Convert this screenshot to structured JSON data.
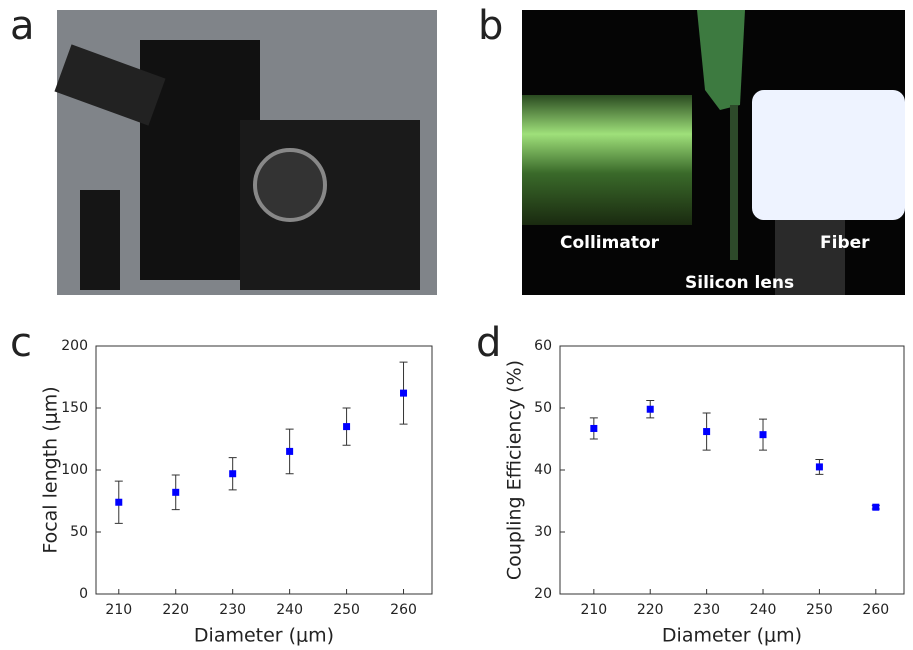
{
  "panel_labels": [
    "a",
    "b",
    "c",
    "d"
  ],
  "photo_labels": [
    "Collimator",
    "Silicon lens",
    "Fiber"
  ],
  "chart_data": [
    {
      "type": "scatter",
      "x_label": "Diameter (μm)",
      "y_label": "Focal length (μm)",
      "x": [
        210,
        220,
        230,
        240,
        250,
        260
      ],
      "values": [
        74,
        82,
        97,
        115,
        135,
        162
      ],
      "errors": [
        17,
        14,
        13,
        18,
        15,
        25
      ],
      "color": "#0000ff",
      "xlim": [
        206,
        265
      ],
      "xticks": [
        210,
        220,
        230,
        240,
        250,
        260
      ],
      "ylim": [
        0,
        200
      ],
      "yticks": [
        0,
        50,
        100,
        150,
        200
      ]
    },
    {
      "type": "scatter",
      "x_label": "Diameter (μm)",
      "y_label": "Coupling Efficiency (%)",
      "x": [
        210,
        220,
        230,
        240,
        250,
        260
      ],
      "values": [
        46.7,
        49.8,
        46.2,
        45.7,
        40.5,
        34
      ],
      "errors": [
        1.7,
        1.4,
        3,
        2.5,
        1.2,
        0.3
      ],
      "color": "#0000ff",
      "xlim": [
        204,
        265
      ],
      "xticks": [
        210,
        220,
        230,
        240,
        250,
        260
      ],
      "ylim": [
        20,
        60
      ],
      "yticks": [
        20,
        30,
        40,
        50,
        60
      ]
    }
  ]
}
